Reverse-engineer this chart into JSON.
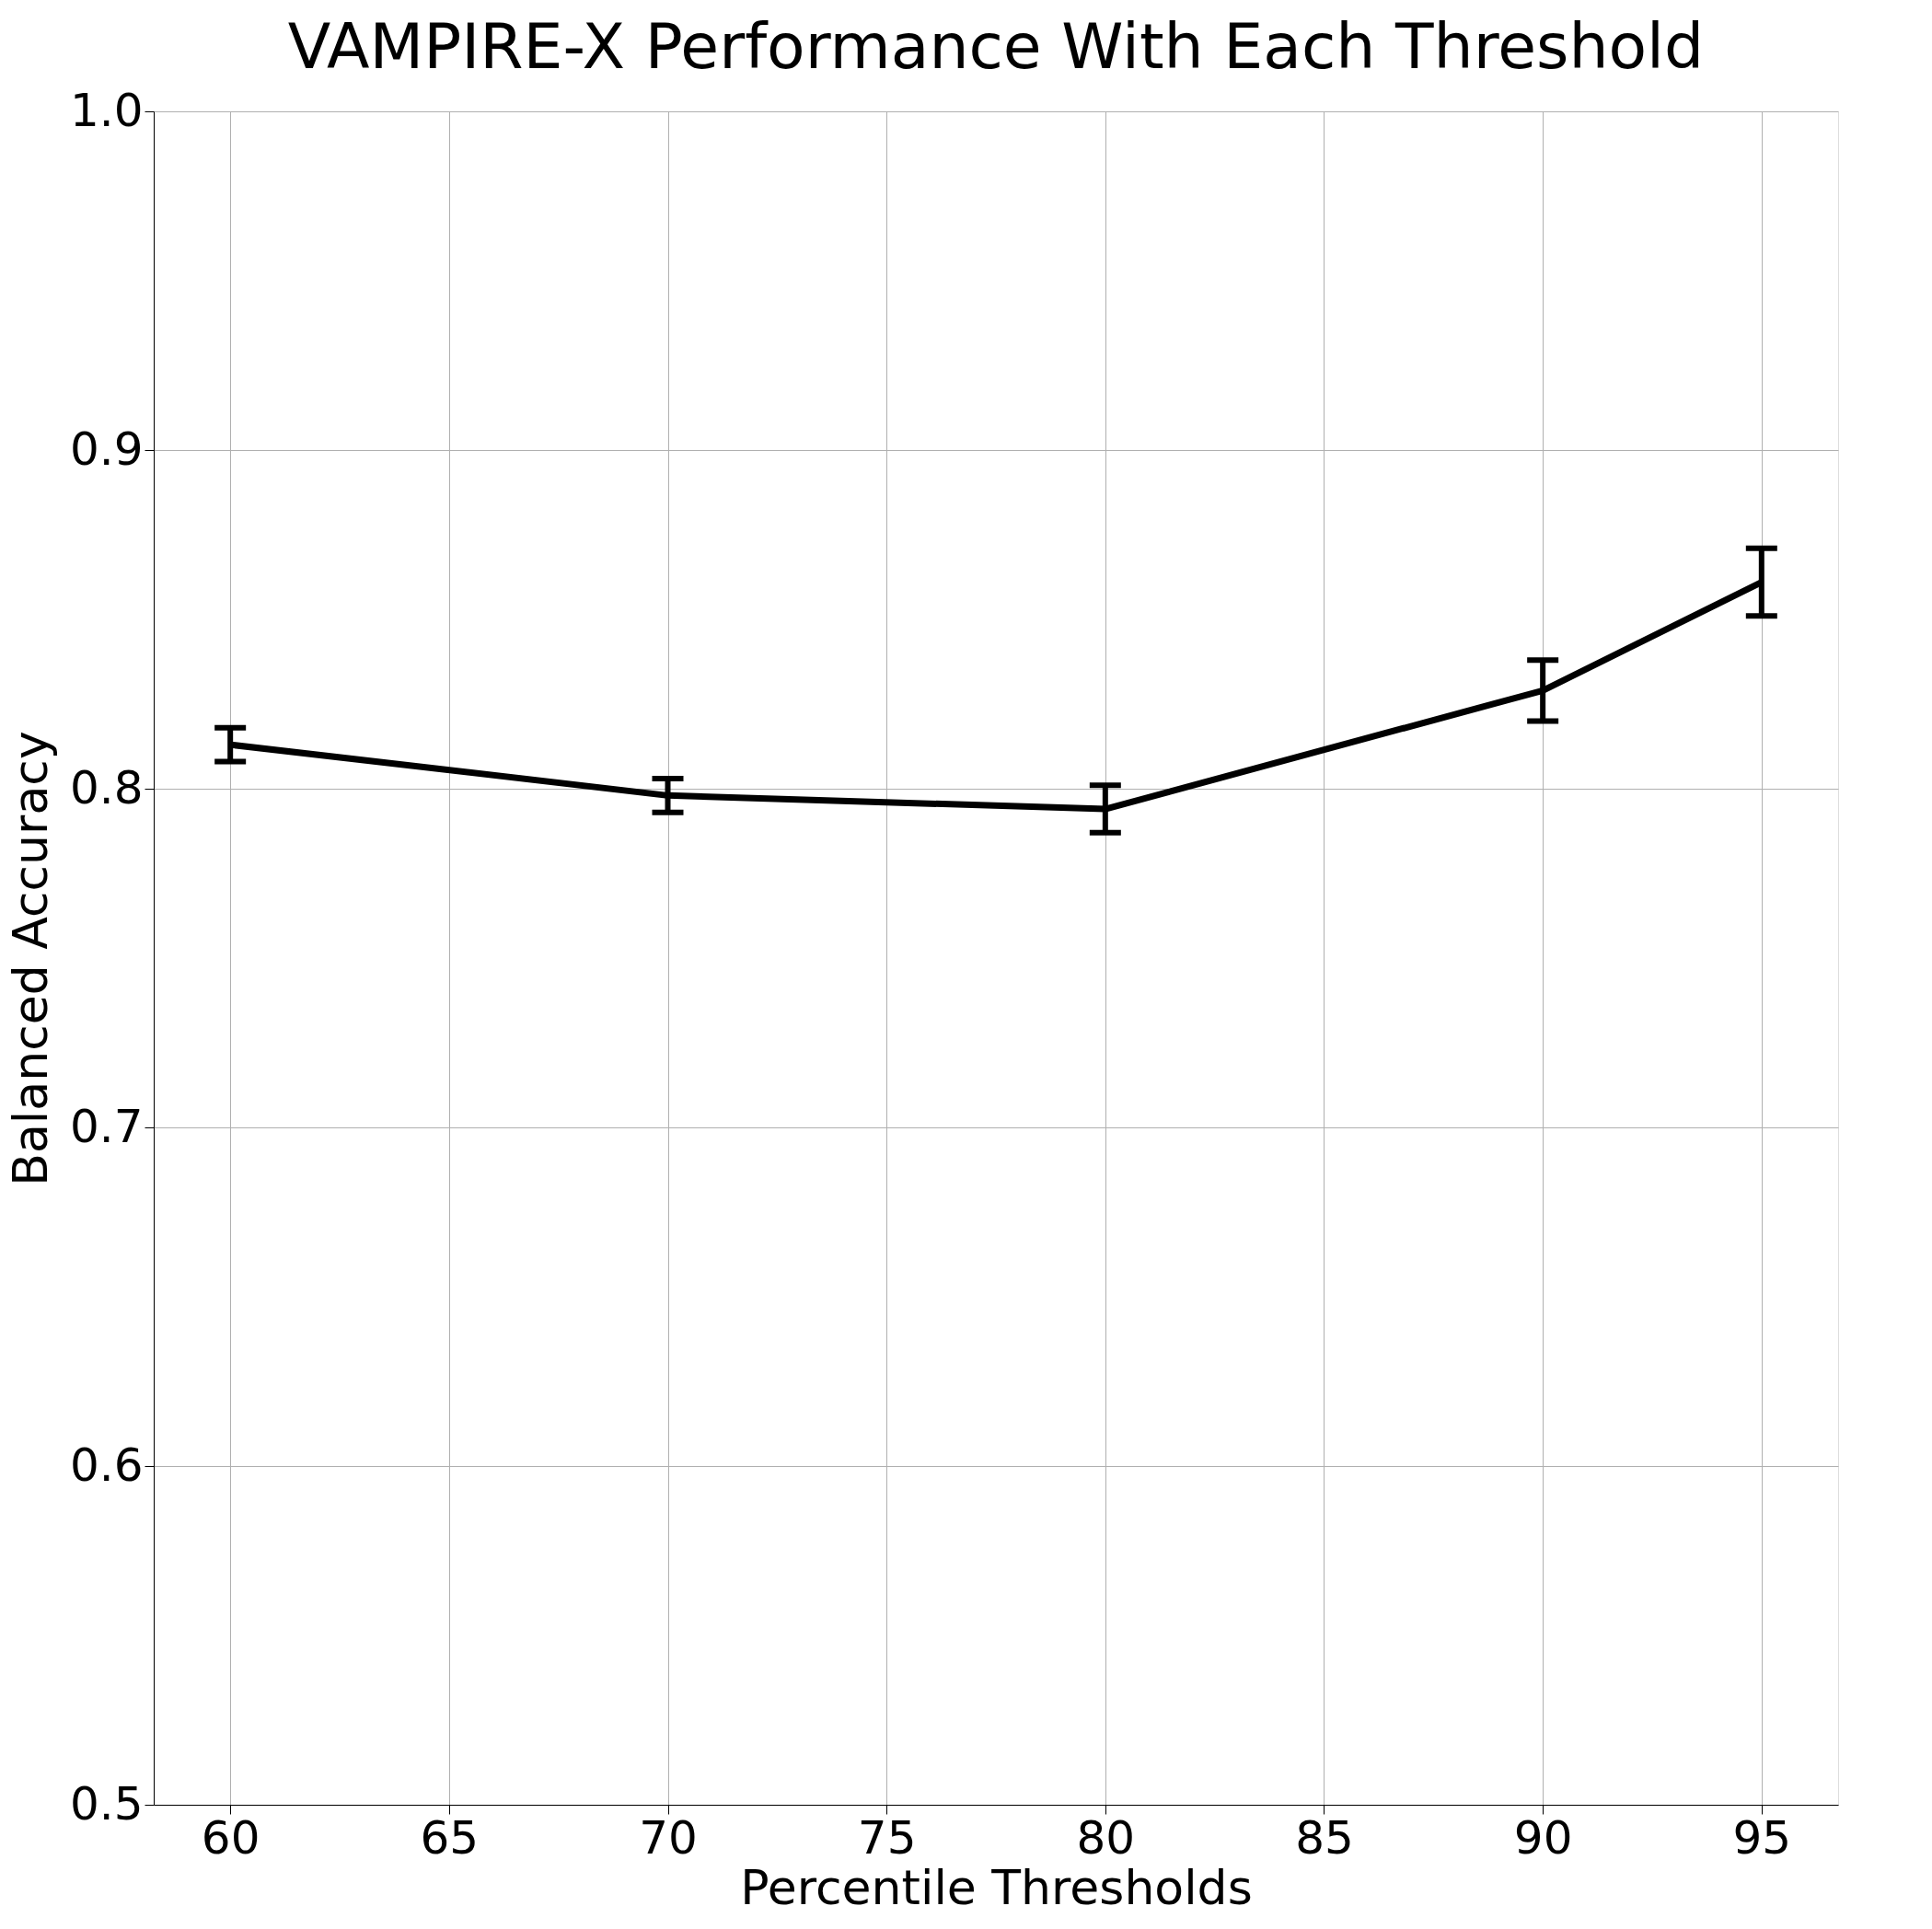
{
  "chart_data": {
    "type": "line",
    "title": "VAMPIRE-X Performance With Each Threshold",
    "xlabel": "Percentile Thresholds",
    "ylabel": "Balanced Accuracy",
    "x": [
      60,
      70,
      80,
      90,
      95
    ],
    "series": [
      {
        "color": "#000000",
        "values": [
          0.813,
          0.798,
          0.794,
          0.829,
          0.861
        ],
        "errors": [
          0.005,
          0.005,
          0.007,
          0.009,
          0.01
        ]
      }
    ],
    "xlim": [
      58.25,
      96.75
    ],
    "xticks": [
      60,
      65,
      70,
      75,
      80,
      85,
      90,
      95
    ],
    "ylim": [
      0.5,
      1.0
    ],
    "yticks": [
      {
        "value": 0.5,
        "label": "0.5"
      },
      {
        "value": 0.6,
        "label": "0.6"
      },
      {
        "value": 0.7,
        "label": "0.7"
      },
      {
        "value": 0.8,
        "label": "0.8"
      },
      {
        "value": 0.9,
        "label": "0.9"
      },
      {
        "value": 1.0,
        "label": "1.0"
      }
    ],
    "grid": true,
    "marker": "none",
    "line_style": "solid"
  }
}
